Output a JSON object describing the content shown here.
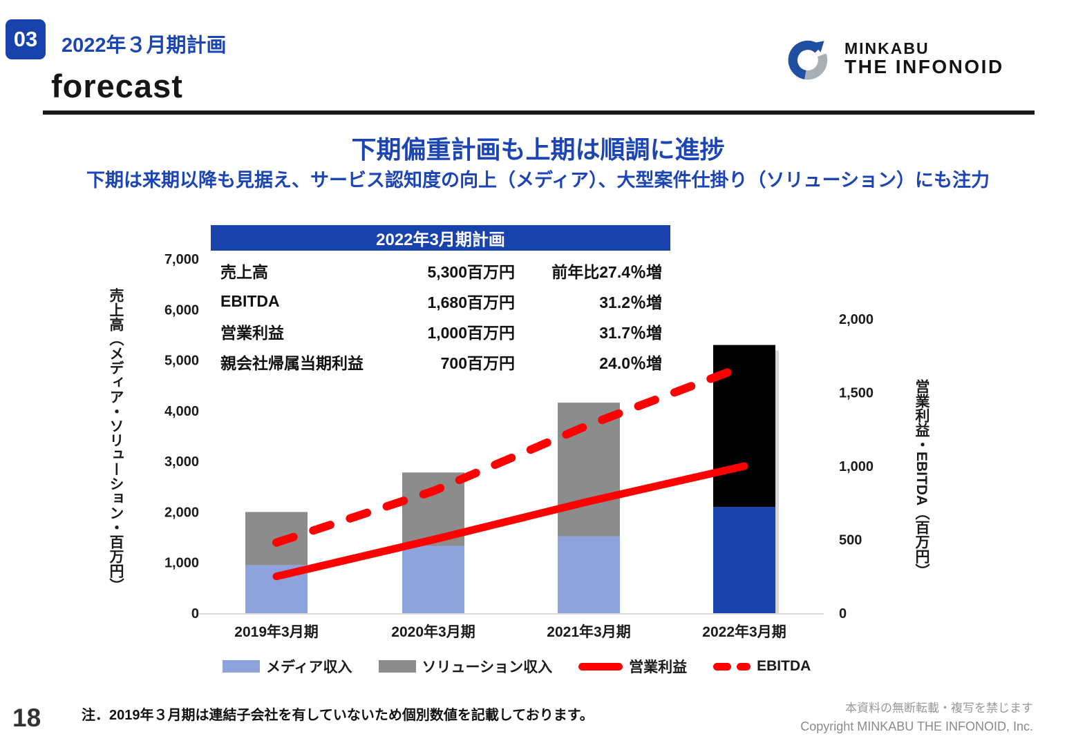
{
  "header": {
    "section_number": "03",
    "section_title": "2022年３月期計画",
    "page_heading": "forecast",
    "logo": {
      "brand_top": "MINKABU",
      "brand_bottom": "THE INFONOID"
    }
  },
  "titles": {
    "main": "下期偏重計画も上期は順調に進捗",
    "sub": "下期は来期以降も見据え、サービス認知度の向上（メディア）、大型案件仕掛り（ソリューション）にも注力"
  },
  "plan_table": {
    "header": "2022年3月期計画",
    "rows": [
      {
        "label": "売上高",
        "value": "5,300百万円",
        "change": "前年比27.4％増"
      },
      {
        "label": "EBITDA",
        "value": "1,680百万円",
        "change": "31.2％増"
      },
      {
        "label": "営業利益",
        "value": "1,000百万円",
        "change": "31.7％増"
      },
      {
        "label": "親会社帰属当期利益",
        "value": "700百万円",
        "change": "24.0％増"
      }
    ]
  },
  "chart_data": {
    "type": "bar",
    "subtype": "stacked-bars-with-line-overlay",
    "categories": [
      "2019年3月期",
      "2020年3月期",
      "2021年3月期",
      "2022年3月期"
    ],
    "series": [
      {
        "name": "メディア収入",
        "values": [
          950,
          1330,
          1520,
          2100
        ],
        "colors": [
          "#8EA3DB",
          "#8EA3DB",
          "#8EA3DB",
          "#1843AC"
        ]
      },
      {
        "name": "ソリューション収入",
        "values": [
          1050,
          1450,
          2640,
          3200
        ],
        "colors": [
          "#8C8C8C",
          "#8C8C8C",
          "#8C8C8C",
          "#000000"
        ]
      }
    ],
    "bar_totals": [
      2000,
      2780,
      4160,
      5300
    ],
    "lines": [
      {
        "name": "営業利益",
        "values": [
          250,
          500,
          760,
          1000
        ],
        "style": "solid",
        "color": "#FF0000",
        "axis": "right"
      },
      {
        "name": "EBITDA",
        "values": [
          480,
          830,
          1280,
          1680
        ],
        "style": "dashed",
        "color": "#FF0000",
        "axis": "right"
      }
    ],
    "left_axis": {
      "title": "売上高（メディア・ソリューション・百万円）",
      "min": 0,
      "max": 7000,
      "tick_step": 1000,
      "tick_labels": [
        "0",
        "1,000",
        "2,000",
        "3,000",
        "4,000",
        "5,000",
        "6,000",
        "7,000"
      ]
    },
    "right_axis": {
      "title": "営業利益・EBITDA（百万円）",
      "min": 0,
      "max": 2000,
      "tick_step": 500,
      "tick_labels": [
        "0",
        "500",
        "1,000",
        "1,500",
        "2,000"
      ]
    },
    "grid": false,
    "legend_position": "bottom",
    "baseline_color": "#D9D9D9"
  },
  "note": "注．2019年３月期は連結子会社を有していないため個別数値を記載しております。",
  "footer": {
    "page_number": "18",
    "notice": "本資料の無断転載・複写を禁じます",
    "copyright": "Copyright MINKABU THE INFONOID, Inc."
  },
  "colors": {
    "brand_blue": "#1843AC",
    "title_blue": "#1B44B4",
    "media_bar": "#8EA3DB",
    "solution_bar": "#8C8C8C",
    "plan_media_bar": "#1843AC",
    "plan_solution_bar": "#000000",
    "line_red": "#FF0000"
  }
}
